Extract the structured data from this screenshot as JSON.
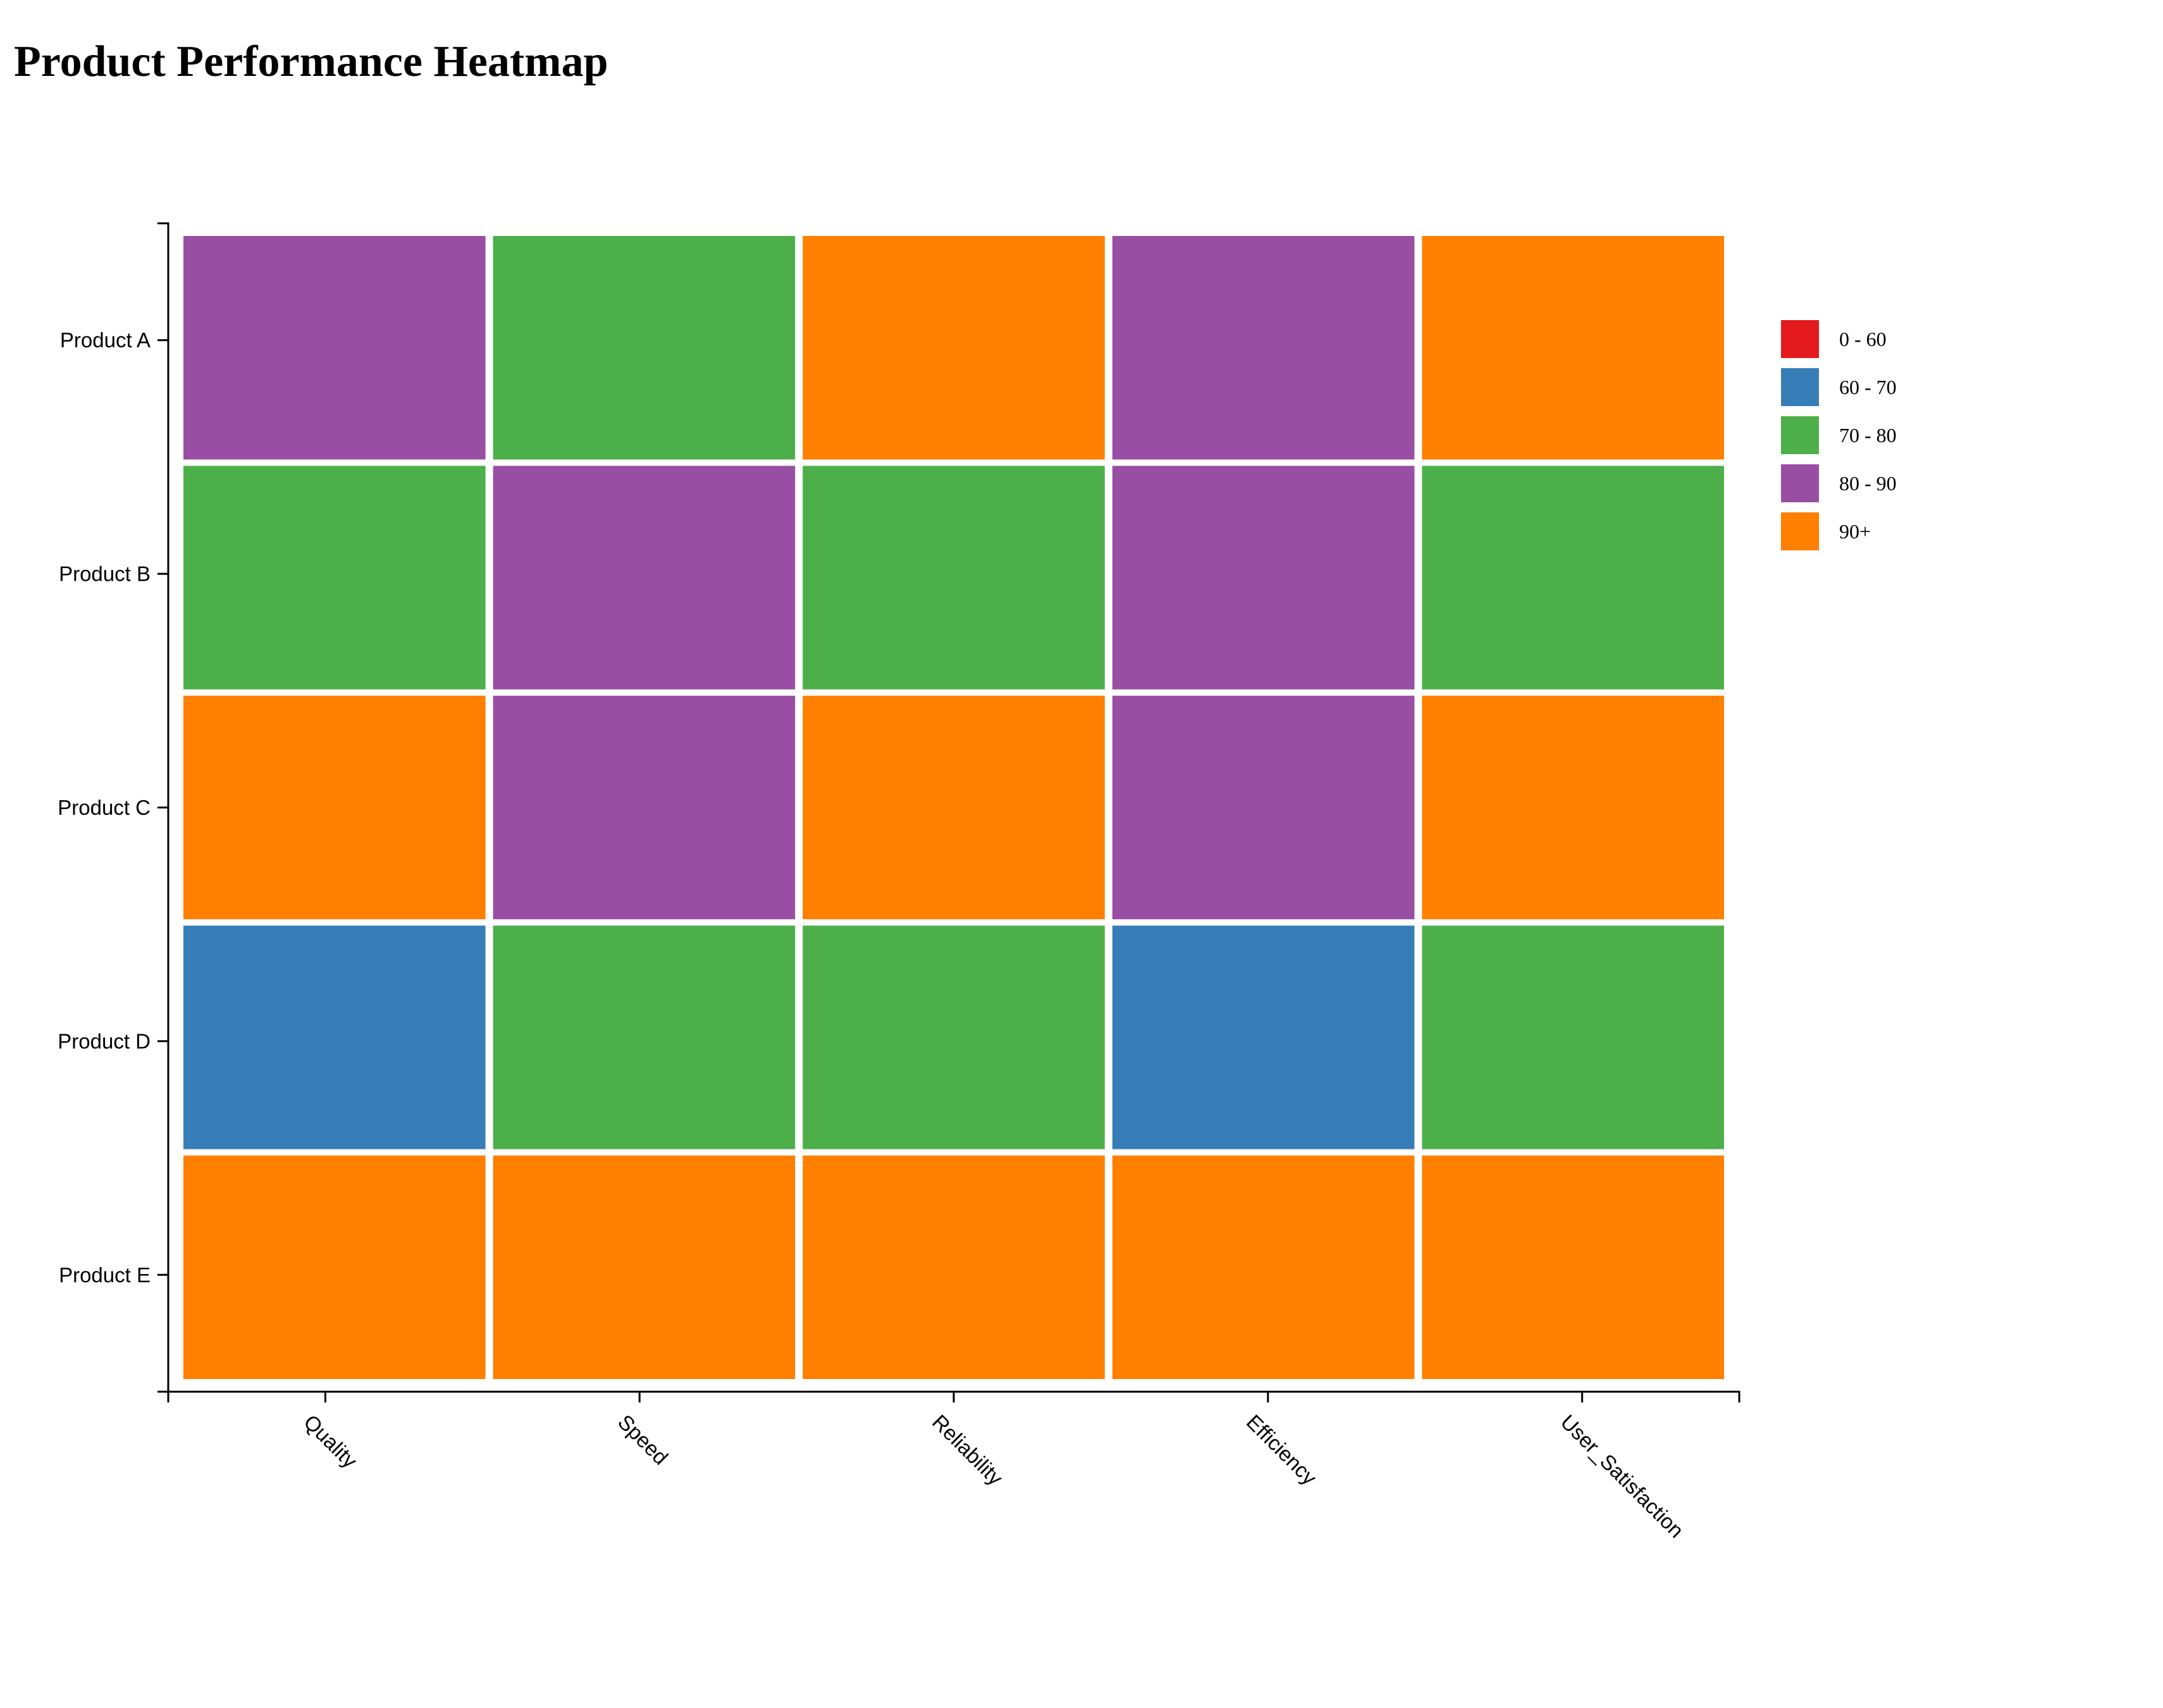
{
  "chart_data": {
    "type": "heatmap",
    "title": "Product Performance Heatmap",
    "categories": [
      "Quality",
      "Speed",
      "Reliability",
      "Efficiency",
      "User_Satisfaction"
    ],
    "rows": [
      "Product A",
      "Product B",
      "Product C",
      "Product D",
      "Product E"
    ],
    "bins": [
      {
        "label": "0 - 60",
        "color": "#e41a1c"
      },
      {
        "label": "60 - 70",
        "color": "#377eb8"
      },
      {
        "label": "70 - 80",
        "color": "#4daf4a"
      },
      {
        "label": "80 - 90",
        "color": "#984ea3"
      },
      {
        "label": "90+",
        "color": "#ff7f00"
      }
    ],
    "cell_bins": [
      [
        "80 - 90",
        "70 - 80",
        "90+",
        "80 - 90",
        "90+"
      ],
      [
        "70 - 80",
        "80 - 90",
        "70 - 80",
        "80 - 90",
        "70 - 80"
      ],
      [
        "90+",
        "80 - 90",
        "90+",
        "80 - 90",
        "90+"
      ],
      [
        "60 - 70",
        "70 - 80",
        "70 - 80",
        "60 - 70",
        "70 - 80"
      ],
      [
        "90+",
        "90+",
        "90+",
        "90+",
        "90+"
      ]
    ],
    "legend": "right",
    "grid": false
  }
}
